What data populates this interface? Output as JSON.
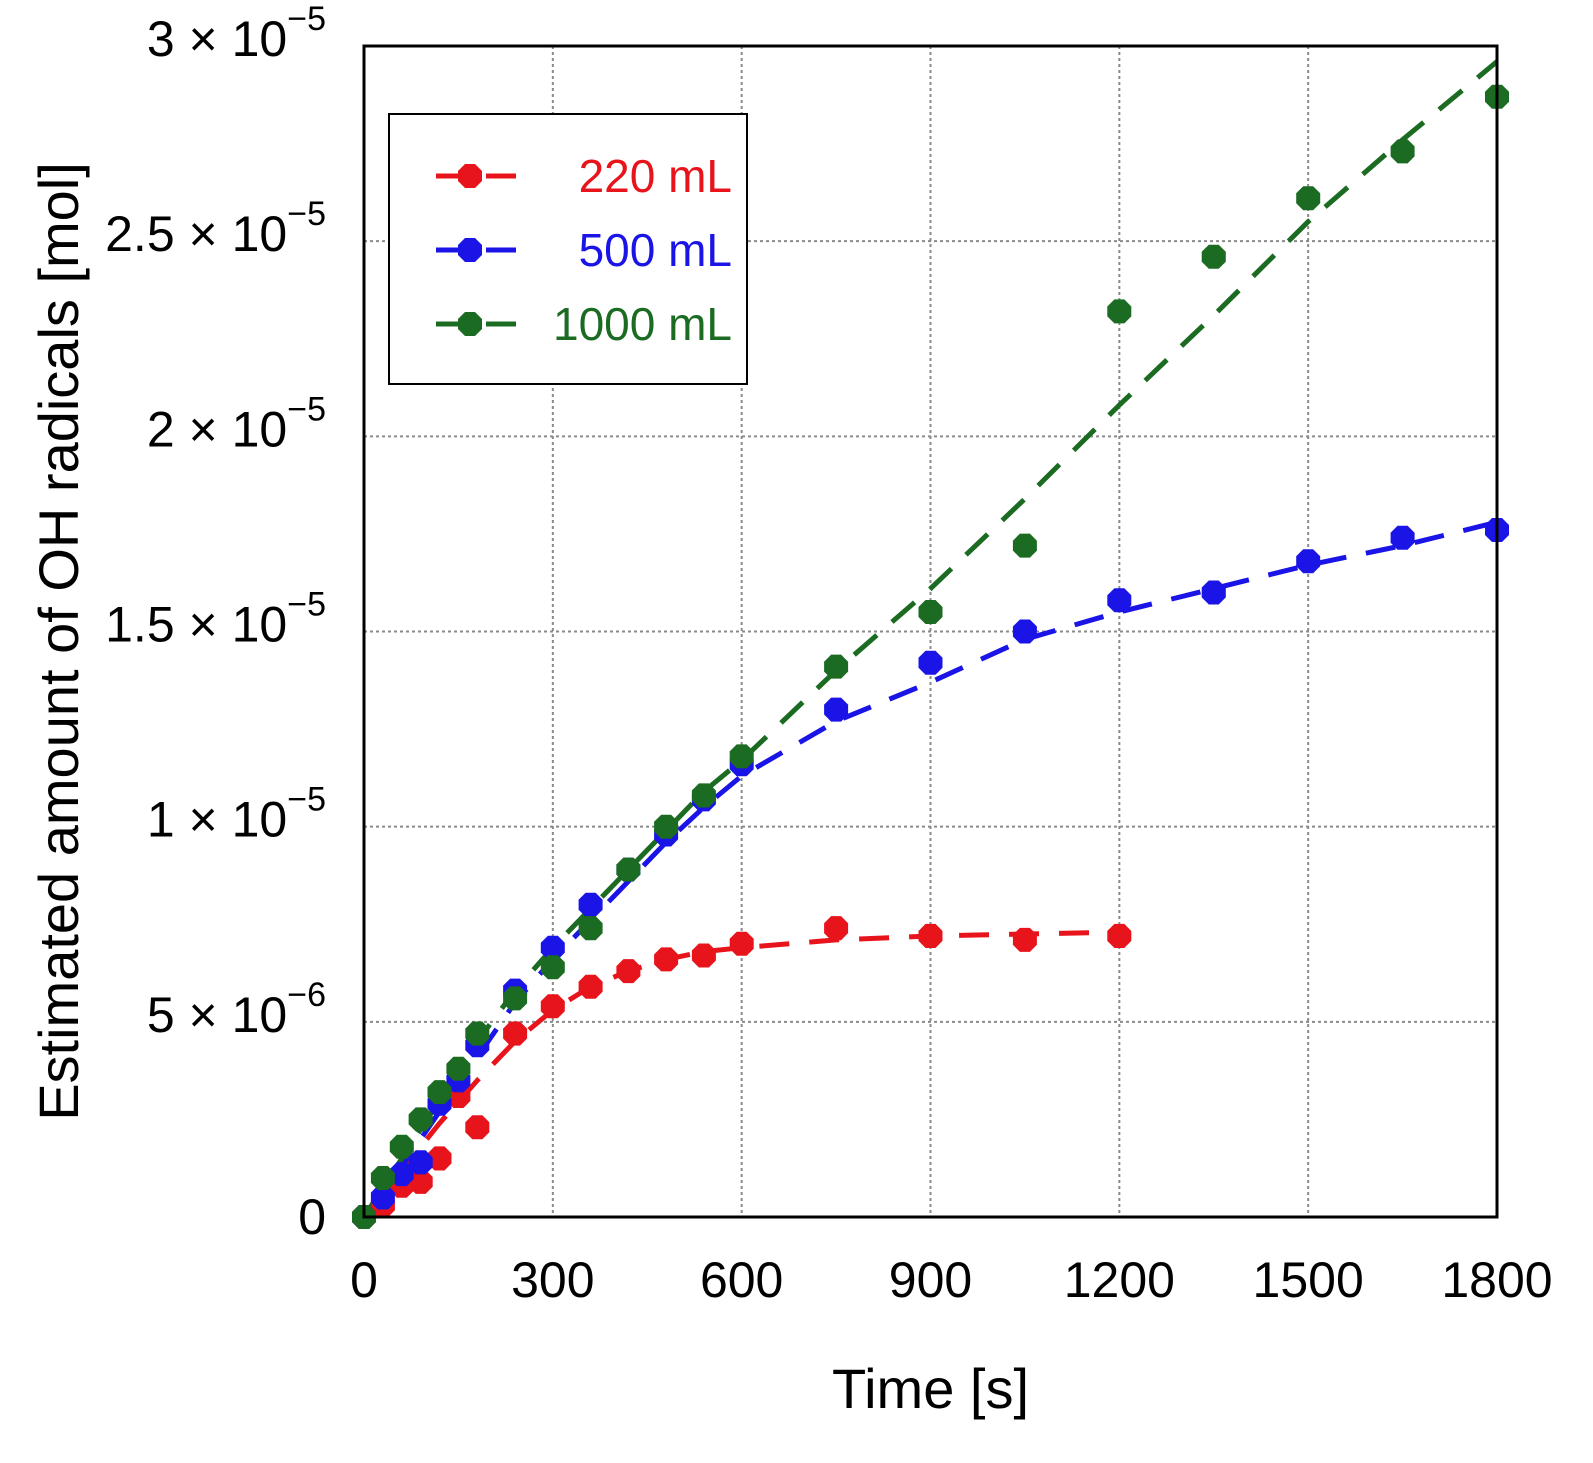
{
  "chart_data": {
    "type": "line",
    "title": "",
    "xlabel": "Time [s]",
    "ylabel": "Estimated amount of OH radicals [mol]",
    "xlim": [
      0,
      1800
    ],
    "ylim": [
      0,
      3e-05
    ],
    "grid": true,
    "legend_position": "top-left",
    "x_ticks": [
      0,
      300,
      600,
      900,
      1200,
      1500,
      1800
    ],
    "x_tick_labels": [
      "0",
      "300",
      "600",
      "900",
      "1200",
      "1500",
      "1800"
    ],
    "y_ticks": [
      0,
      5e-06,
      1e-05,
      1.5e-05,
      2e-05,
      2.5e-05,
      3e-05
    ],
    "y_tick_labels": [
      {
        "mantissa": "0",
        "exponent": ""
      },
      {
        "mantissa": "5 × 10",
        "exponent": "−6"
      },
      {
        "mantissa": "1 × 10",
        "exponent": "−5"
      },
      {
        "mantissa": "1.5 × 10",
        "exponent": "−5"
      },
      {
        "mantissa": "2 × 10",
        "exponent": "−5"
      },
      {
        "mantissa": "2.5 × 10",
        "exponent": "−5"
      },
      {
        "mantissa": "3 × 10",
        "exponent": "−5"
      }
    ],
    "series": [
      {
        "name": "220 mL",
        "color": "#e8141c",
        "x": [
          0,
          30,
          60,
          90,
          120,
          150,
          180,
          240,
          300,
          360,
          420,
          480,
          540,
          600,
          750,
          900,
          1050,
          1200
        ],
        "values": [
          0,
          3e-07,
          8e-07,
          9e-07,
          1.5e-06,
          3.1e-06,
          2.3e-06,
          4.7e-06,
          5.4e-06,
          5.9e-06,
          6.3e-06,
          6.6e-06,
          6.7e-06,
          7e-06,
          7.4e-06,
          7.2e-06,
          7.1e-06,
          7.2e-06
        ],
        "fit_x": [
          0,
          60,
          120,
          180,
          240,
          300,
          360,
          420,
          480,
          540,
          600,
          750,
          900,
          1050,
          1200
        ],
        "fit_y": [
          0,
          1.2e-06,
          2.4e-06,
          3.5e-06,
          4.5e-06,
          5.3e-06,
          5.9e-06,
          6.3e-06,
          6.6e-06,
          6.8e-06,
          6.9e-06,
          7.1e-06,
          7.2e-06,
          7.25e-06,
          7.3e-06
        ]
      },
      {
        "name": "500 mL",
        "color": "#1a14e6",
        "x": [
          0,
          30,
          60,
          90,
          120,
          150,
          180,
          240,
          300,
          360,
          420,
          480,
          540,
          600,
          750,
          900,
          1050,
          1200,
          1350,
          1500,
          1650,
          1800
        ],
        "values": [
          0,
          5e-07,
          1.1e-06,
          1.4e-06,
          2.9e-06,
          3.5e-06,
          4.4e-06,
          5.8e-06,
          6.9e-06,
          8e-06,
          8.9e-06,
          9.8e-06,
          1.07e-05,
          1.16e-05,
          1.3e-05,
          1.42e-05,
          1.5e-05,
          1.58e-05,
          1.6e-05,
          1.68e-05,
          1.74e-05,
          1.76e-05
        ],
        "fit_x": [
          0,
          60,
          120,
          180,
          240,
          300,
          360,
          420,
          480,
          540,
          600,
          750,
          900,
          1050,
          1200,
          1350,
          1500,
          1650,
          1800
        ],
        "fit_y": [
          0,
          1.3e-06,
          2.7e-06,
          4.1e-06,
          5.5e-06,
          6.6e-06,
          7.6e-06,
          8.6e-06,
          9.6e-06,
          1.05e-05,
          1.13e-05,
          1.27e-05,
          1.37e-05,
          1.48e-05,
          1.55e-05,
          1.61e-05,
          1.67e-05,
          1.72e-05,
          1.78e-05
        ]
      },
      {
        "name": "1000 mL",
        "color": "#1b6b22",
        "x": [
          0,
          30,
          60,
          90,
          120,
          150,
          180,
          240,
          300,
          360,
          420,
          480,
          540,
          600,
          750,
          900,
          1050,
          1200,
          1350,
          1500,
          1650,
          1800
        ],
        "values": [
          0,
          1e-06,
          1.8e-06,
          2.5e-06,
          3.2e-06,
          3.8e-06,
          4.7e-06,
          5.6e-06,
          6.4e-06,
          7.4e-06,
          8.9e-06,
          1e-05,
          1.08e-05,
          1.18e-05,
          1.41e-05,
          1.55e-05,
          1.72e-05,
          2.32e-05,
          2.46e-05,
          2.61e-05,
          2.73e-05,
          2.87e-05
        ],
        "fit_x": [
          0,
          60,
          120,
          180,
          240,
          300,
          360,
          420,
          480,
          540,
          600,
          750,
          900,
          1050,
          1200,
          1350,
          1500,
          1650,
          1800
        ],
        "fit_y": [
          0,
          1.5e-06,
          3e-06,
          4.5e-06,
          5.8e-06,
          6.9e-06,
          7.9e-06,
          8.9e-06,
          9.9e-06,
          1.09e-05,
          1.17e-05,
          1.4e-05,
          1.61e-05,
          1.84e-05,
          2.08e-05,
          2.31e-05,
          2.55e-05,
          2.76e-05,
          2.96e-05
        ]
      }
    ]
  }
}
